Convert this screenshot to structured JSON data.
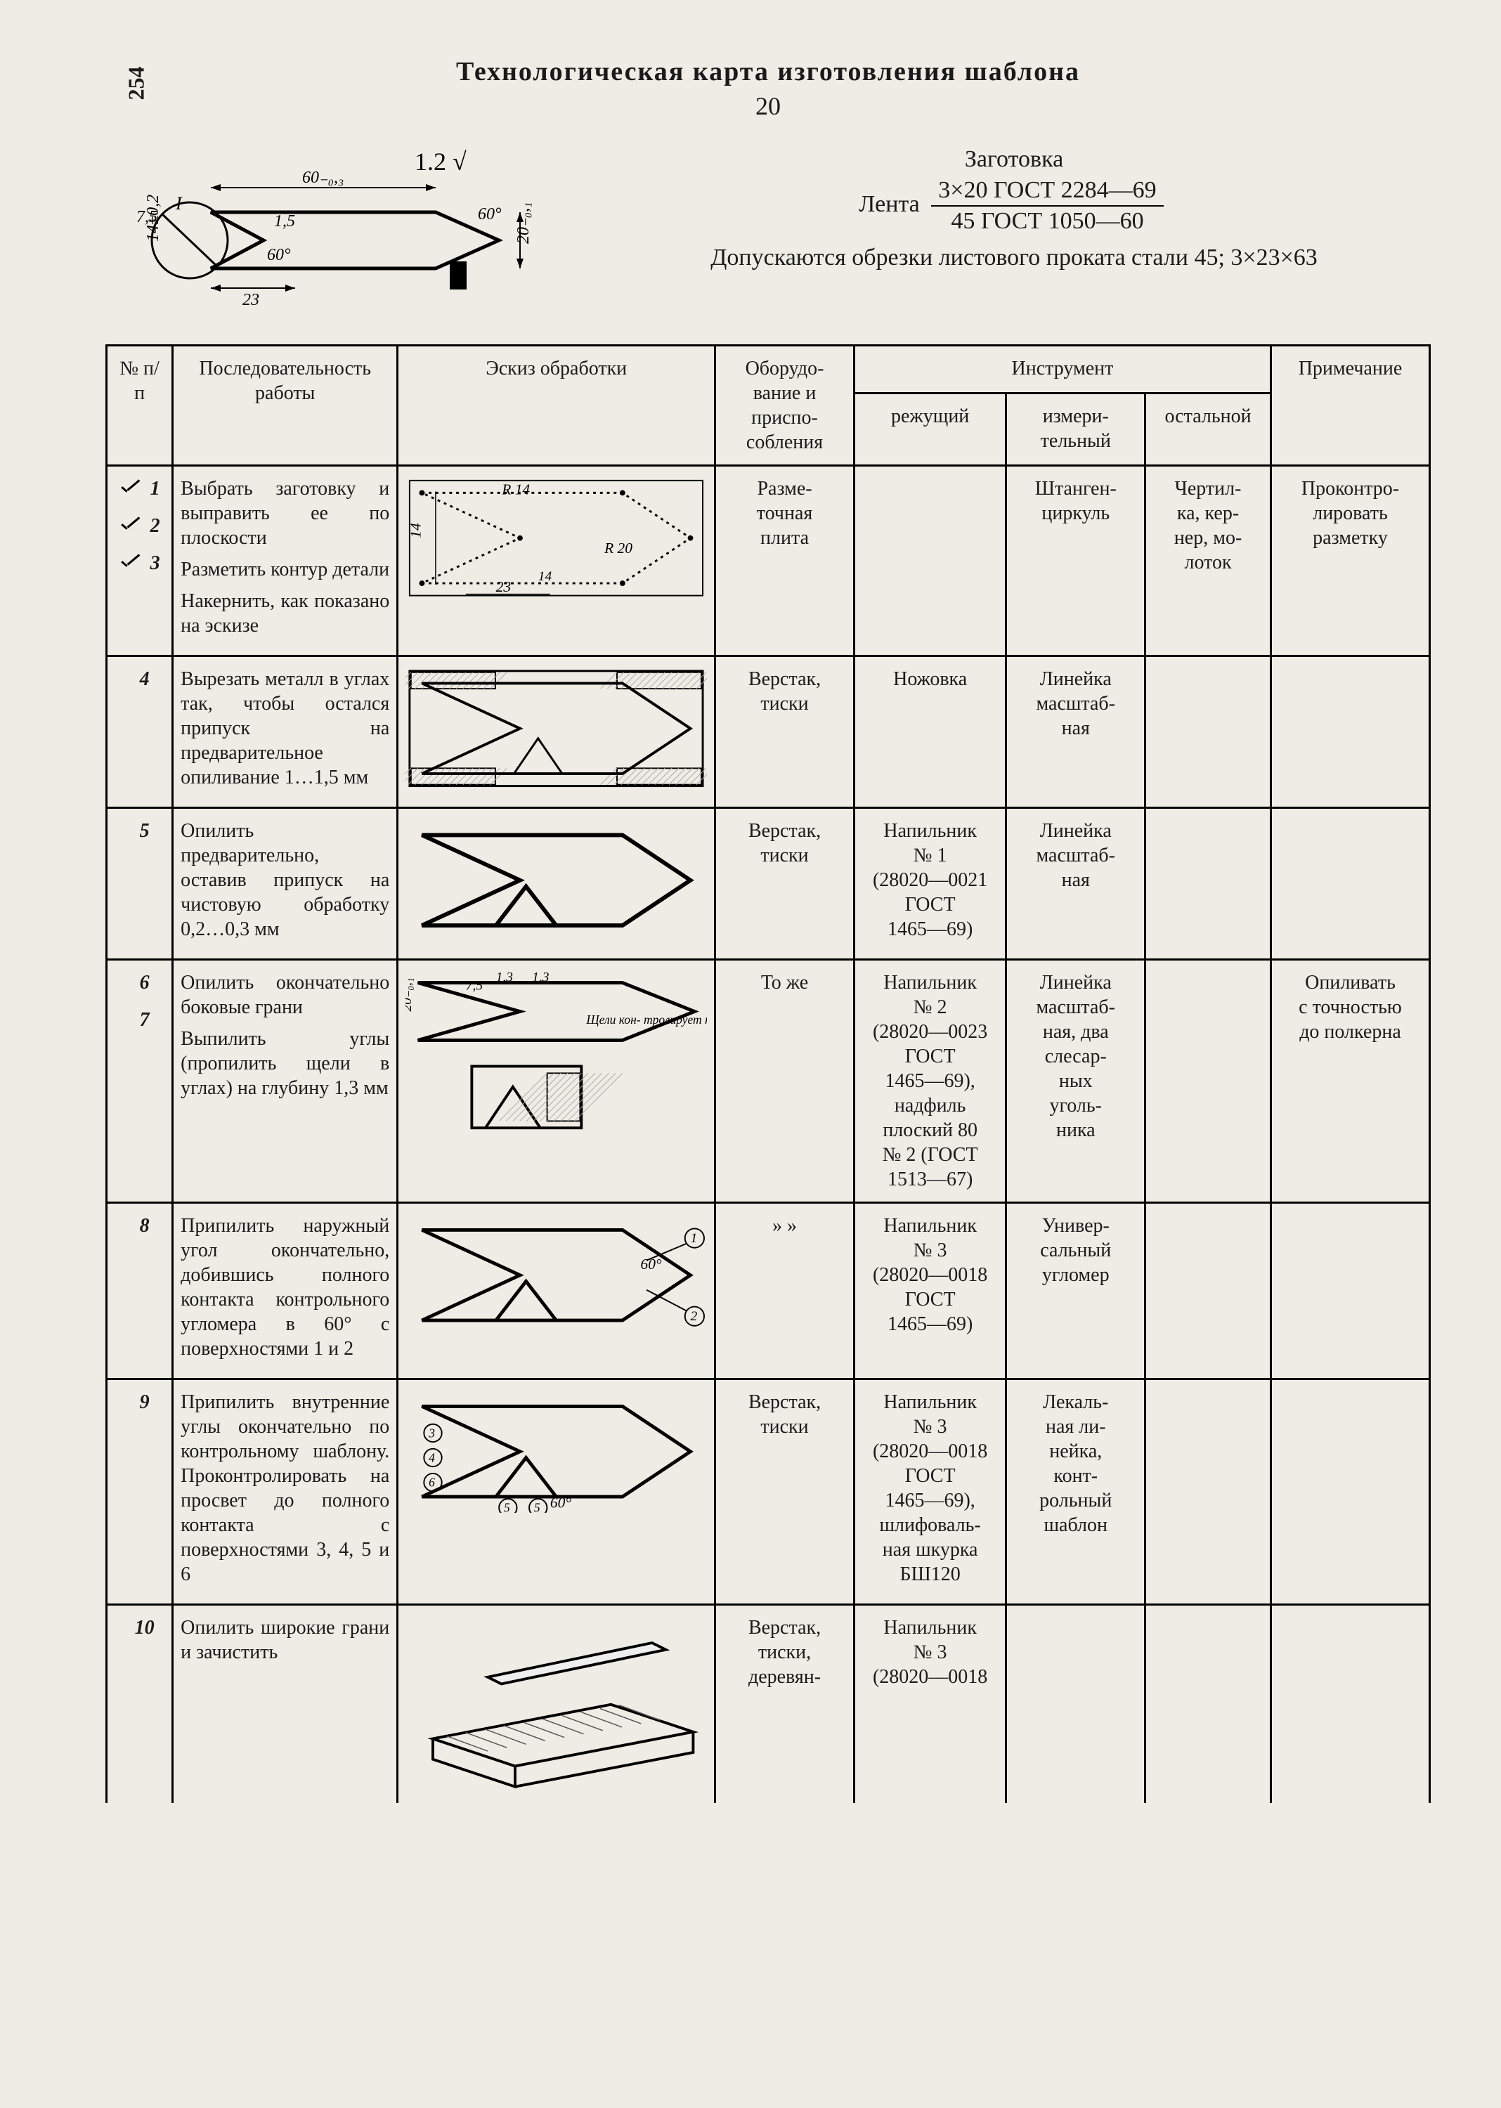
{
  "pageNumber": "254",
  "title": "Технологическая карта изготовления шаблона",
  "handwrittenNote": "20",
  "dimensions": {
    "top": "60₋₀,₃",
    "cornerAngle": "60°",
    "innerAngle": "60°",
    "halfHeight": "7,5",
    "height": "14±0,2",
    "inset": "23",
    "gap": "1,5",
    "vert": "20₋₀,₁",
    "roughness": "1,2"
  },
  "spec": {
    "label": "Заготовка",
    "lenta": "Лента",
    "num": "3×20 ГОСТ 2284—69",
    "den": "45 ГОСТ 1050—60",
    "allow": "Допускаются обрезки листового проката стали 45; 3×23×63"
  },
  "headers": {
    "num": "№ п/п",
    "seq": "Последовательность работы",
    "sketch": "Эскиз обработки",
    "equip": "Оборудо-\nвание и\nприспо-\nсобления",
    "tool": "Инструмент",
    "cut": "режущий",
    "meas": "измери-\nтельный",
    "other": "остальной",
    "remark": "Примечание"
  },
  "rows": [
    {
      "cluster": true,
      "items": [
        {
          "n": "1",
          "tick": true,
          "text": "Выбрать заготовку и выправить ее по плоскости"
        },
        {
          "n": "2",
          "tick": true,
          "text": "Разметить контур детали"
        },
        {
          "n": "3",
          "tick": true,
          "text": "Накернить, как показано на эскизе"
        }
      ],
      "sketch": "s1",
      "sketchDims": {
        "r14": "R 14",
        "r20": "R 20",
        "d14": "14",
        "d23": "23",
        "dSmall": "14"
      },
      "equip": "Разме-\nточная\nплита",
      "cut": "",
      "meas": "Штанген-\nциркуль",
      "other": "Чертил-\nка, кер-\nнер, мо-\nлоток",
      "remark": "Проконтро-\nлировать\nразметку"
    },
    {
      "items": [
        {
          "n": "4",
          "text": "Вырезать металл в углах так, чтобы остался припуск на предварительное опиливание 1…1,5 мм"
        }
      ],
      "sketch": "s2",
      "equip": "Верстак,\nтиски",
      "cut": "Ножовка",
      "meas": "Линейка\nмасштаб-\nная",
      "other": "",
      "remark": ""
    },
    {
      "items": [
        {
          "n": "5",
          "text": "Опилить предварительно, оставив припуск на чистовую обработку 0,2…0,3 мм"
        }
      ],
      "sketch": "s3",
      "equip": "Верстак,\nтиски",
      "cut": "Напильник\n№ 1\n(28020—0021\nГОСТ\n1465—69)",
      "meas": "Линейка\nмасштаб-\nная",
      "other": "",
      "remark": ""
    },
    {
      "cluster": true,
      "items": [
        {
          "n": "6",
          "text": "Опилить окончательно боковые грани"
        },
        {
          "n": "7",
          "text": "Выпилить углы (пропилить щели в углах) на глубину 1,3 мм"
        }
      ],
      "sketch": "s4",
      "sketchDims": {
        "h": "20₋₀,₁",
        "g1": "1,3",
        "g2": "1,3",
        "t": "7,5",
        "note": "Щели кон-\nтролирует\nна просвет"
      },
      "equip": "То же",
      "cut": "Напильник\n№ 2\n(28020—0023\nГОСТ\n1465—69),\nнадфиль\nплоский 80\n№ 2 (ГОСТ\n1513—67)",
      "meas": "Линейка\nмасштаб-\nная, два\nслесар-\nных\nуголь-\nника",
      "other": "",
      "remark": "Опиливать\nс точностью\nдо полкерна"
    },
    {
      "items": [
        {
          "n": "8",
          "text": "Припилить наружный угол окончательно, добившись полного контакта контрольного угломера в 60° с поверхностями 1 и 2"
        }
      ],
      "sketch": "s5",
      "sketchDims": {
        "a": "60°",
        "p1": "1",
        "p2": "2"
      },
      "equip": "» »",
      "cut": "Напильник\n№ 3\n(28020—0018\nГОСТ\n1465—69)",
      "meas": "Универ-\nсальный\nугломер",
      "other": "",
      "remark": ""
    },
    {
      "items": [
        {
          "n": "9",
          "text": "Припилить внутренние углы окончательно по контрольному шаблону. Проконтролировать на просвет до полного контакта с поверхностями 3, 4, 5 и 6"
        }
      ],
      "sketch": "s6",
      "sketchDims": {
        "a": "60°",
        "p3": "3",
        "p4": "4",
        "p5": "5",
        "p6": "6"
      },
      "equip": "Верстак,\nтиски",
      "cut": "Напильник\n№ 3\n(28020—0018\nГОСТ\n1465—69),\nшлифоваль-\nная шкурка\nБШ120",
      "meas": "Лекаль-\nная ли-\nнейка,\nконт-\nрольный\nшаблон",
      "other": "",
      "remark": ""
    },
    {
      "items": [
        {
          "n": "10",
          "text": "Опилить широкие грани и зачистить"
        }
      ],
      "sketch": "s7",
      "equip": "Верстак,\nтиски,\nдеревян-",
      "cut": "Напильник\n№ 3\n(28020—0018",
      "meas": "",
      "other": "",
      "remark": "",
      "noBottom": true
    }
  ],
  "svg": {
    "stroke": "#000",
    "thin": 2,
    "mid": 3,
    "thick": 5,
    "hatch": "#555"
  }
}
